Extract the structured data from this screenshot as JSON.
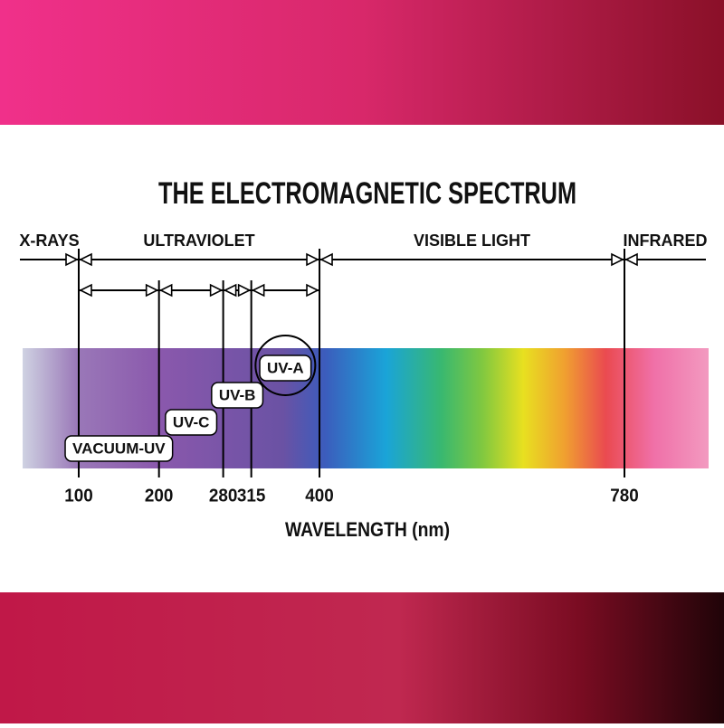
{
  "title": "THE ELECTROMAGNETIC SPECTRUM",
  "regions": [
    "X-RAYS",
    "ULTRAVIOLET",
    "VISIBLE LIGHT",
    "INFRARED"
  ],
  "bands": [
    "VACUUM-UV",
    "UV-C",
    "UV-B",
    "UV-A"
  ],
  "wavelengths": [
    100,
    200,
    280,
    315,
    400,
    780
  ],
  "axis_label": "WAVELENGTH (nm)"
}
